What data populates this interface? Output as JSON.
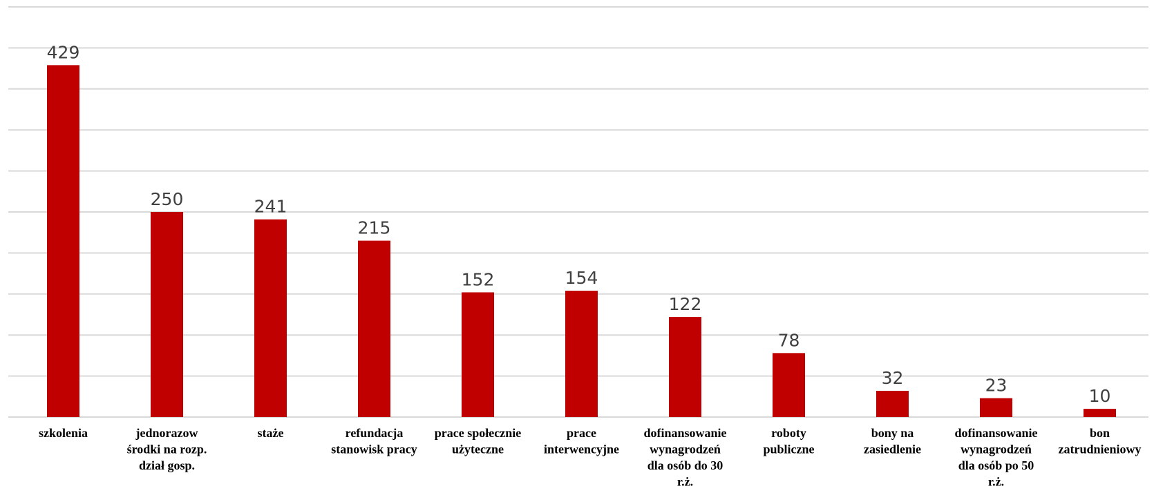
{
  "chart_data": {
    "type": "bar",
    "categories": [
      [
        "szkolenia"
      ],
      [
        "jednorazow",
        "środki na rozp.",
        "dział gosp."
      ],
      [
        "staże"
      ],
      [
        "refundacja",
        "stanowisk pracy"
      ],
      [
        "prace społecznie",
        "użyteczne"
      ],
      [
        "prace",
        "interwencyjne"
      ],
      [
        "dofinansowanie",
        "wynagrodzeń",
        "dla osób do 30",
        "r.ż."
      ],
      [
        "roboty",
        "publiczne"
      ],
      [
        "bony na",
        "zasiedlenie"
      ],
      [
        "dofinansowanie",
        "wynagrodzeń",
        "dla osób po 50",
        "r.ż."
      ],
      [
        "bon",
        "zatrudnieniowy"
      ]
    ],
    "values": [
      429,
      250,
      241,
      215,
      152,
      154,
      122,
      78,
      32,
      23,
      10
    ],
    "data_labels": [
      "429",
      "250",
      "241",
      "215",
      "152",
      "154",
      "122",
      "78",
      "32",
      "23",
      "10"
    ],
    "ylim": [
      0,
      500
    ],
    "gridline_step": 50,
    "grid": true,
    "legend": "none",
    "bar_color": "#c00000",
    "gridline_color": "#d9d9d9",
    "axis_color": "#d9d9d9"
  }
}
